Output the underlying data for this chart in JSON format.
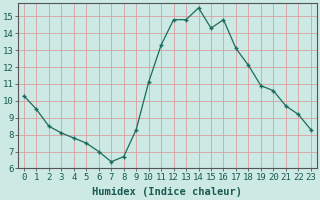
{
  "x": [
    0,
    1,
    2,
    3,
    4,
    5,
    6,
    7,
    8,
    9,
    10,
    11,
    12,
    13,
    14,
    15,
    16,
    17,
    18,
    19,
    20,
    21,
    22,
    23
  ],
  "y": [
    10.3,
    9.5,
    8.5,
    8.1,
    7.8,
    7.5,
    7.0,
    6.4,
    6.7,
    8.3,
    11.1,
    13.3,
    14.8,
    14.8,
    15.5,
    14.3,
    14.8,
    13.1,
    12.1,
    10.9,
    10.6,
    9.7,
    9.2,
    8.3
  ],
  "xlabel": "Humidex (Indice chaleur)",
  "ylim": [
    6,
    15.8
  ],
  "xlim": [
    -0.5,
    23.5
  ],
  "yticks": [
    6,
    7,
    8,
    9,
    10,
    11,
    12,
    13,
    14,
    15
  ],
  "xticks": [
    0,
    1,
    2,
    3,
    4,
    5,
    6,
    7,
    8,
    9,
    10,
    11,
    12,
    13,
    14,
    15,
    16,
    17,
    18,
    19,
    20,
    21,
    22,
    23
  ],
  "line_color": "#1a6b5e",
  "marker_color": "#1a6b5e",
  "bg_color": "#cce9e4",
  "grid_color": "#d8a0a0",
  "axis_color": "#555555",
  "label_color": "#1a5a50",
  "tick_fontsize": 6.5,
  "xlabel_fontsize": 7.5,
  "font_family": "monospace"
}
